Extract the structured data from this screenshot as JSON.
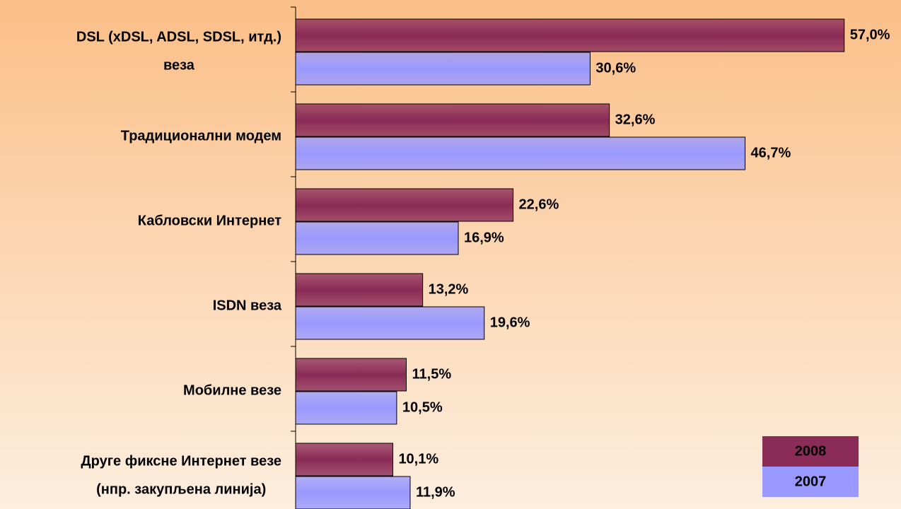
{
  "chart_data": {
    "type": "bar",
    "orientation": "horizontal",
    "categories": [
      [
        "DSL (xDSL, ADSL, SDSL, итд.)",
        "веза"
      ],
      [
        "Традиционални модем"
      ],
      [
        "Кабловски Интернет"
      ],
      [
        "ISDN веза"
      ],
      [
        "Мобилне везе"
      ],
      [
        "Друге фиксне Интернет везе",
        "(нпр. закупљена линија)"
      ]
    ],
    "series": [
      {
        "name": "2008",
        "color": "#8b2b57",
        "values": [
          57.0,
          32.6,
          22.6,
          13.2,
          11.5,
          10.1
        ],
        "value_labels": [
          "57,0%",
          "32,6%",
          "22,6%",
          "13,2%",
          "11,5%",
          "10,1%"
        ]
      },
      {
        "name": "2007",
        "color": "#9999ff",
        "values": [
          30.6,
          46.7,
          16.9,
          19.6,
          10.5,
          11.9
        ],
        "value_labels": [
          "30,6%",
          "46,7%",
          "16,9%",
          "19,6%",
          "10,5%",
          "11,9%"
        ]
      }
    ],
    "xlim": [
      0,
      62.9
    ],
    "legend": "lower right"
  }
}
